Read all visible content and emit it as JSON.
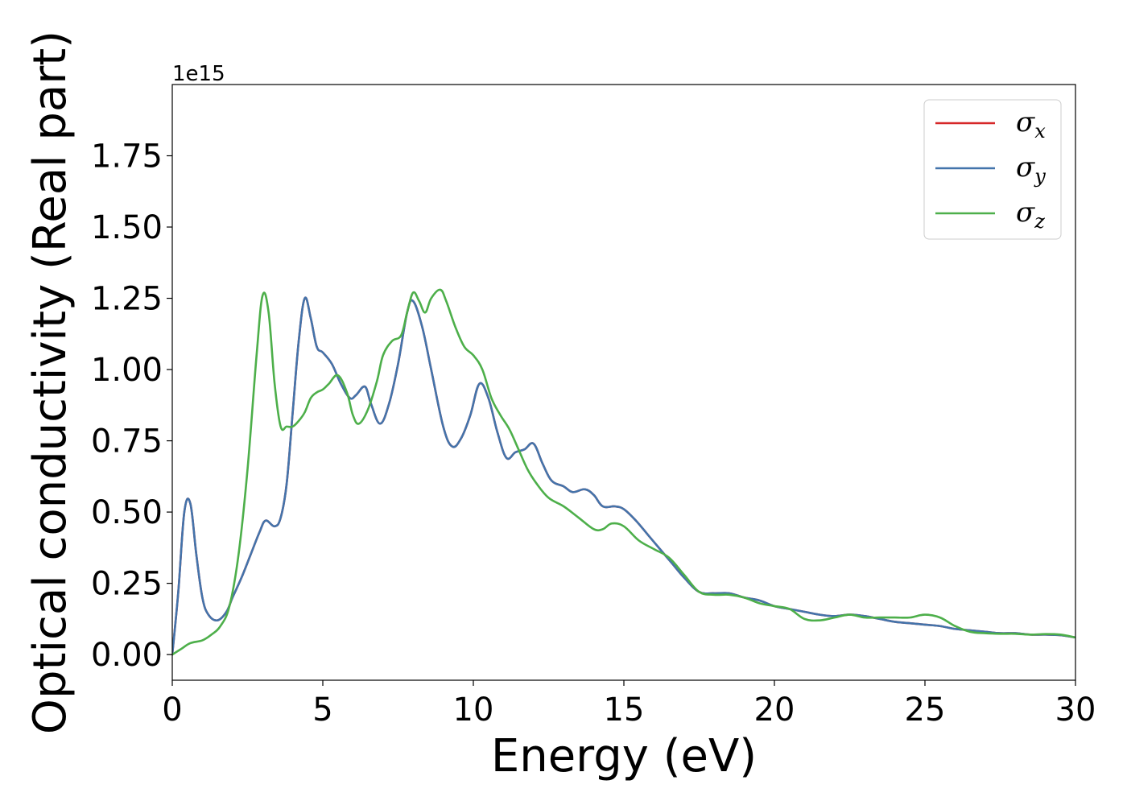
{
  "chart_data": {
    "type": "line",
    "title": "",
    "xlabel": "Energy (eV)",
    "ylabel": "Optical conductivity (Real part)",
    "y_offset_label": "1e15",
    "xlim": [
      0,
      30
    ],
    "ylim": [
      -0.09,
      2.0
    ],
    "xticks": [
      0,
      5,
      10,
      15,
      20,
      25,
      30
    ],
    "xtick_labels": [
      "0",
      "5",
      "10",
      "15",
      "20",
      "25",
      "30"
    ],
    "yticks": [
      0.0,
      0.25,
      0.5,
      0.75,
      1.0,
      1.25,
      1.5,
      1.75
    ],
    "ytick_labels": [
      "0.00",
      "0.25",
      "0.50",
      "0.75",
      "1.00",
      "1.25",
      "1.50",
      "1.75"
    ],
    "grid": false,
    "legend_position": "top-right",
    "series": [
      {
        "name": "σx",
        "legend_base": "σ",
        "legend_sub": "x",
        "color": "#d62728",
        "x": [
          0,
          0.2,
          0.4,
          0.6,
          0.8,
          1.0,
          1.2,
          1.5,
          1.8,
          2.0,
          2.3,
          2.6,
          2.9,
          3.1,
          3.4,
          3.6,
          3.8,
          4.0,
          4.2,
          4.4,
          4.6,
          4.8,
          5.0,
          5.3,
          5.6,
          5.9,
          6.1,
          6.4,
          6.6,
          6.9,
          7.2,
          7.5,
          7.8,
          8.0,
          8.3,
          8.6,
          9.0,
          9.3,
          9.6,
          9.9,
          10.2,
          10.5,
          10.8,
          11.1,
          11.4,
          11.7,
          12.0,
          12.3,
          12.6,
          13.0,
          13.3,
          13.7,
          14.0,
          14.3,
          14.7,
          15.0,
          15.4,
          15.8,
          16.2,
          16.6,
          17.0,
          17.5,
          18.0,
          18.5,
          19.0,
          19.5,
          20.0,
          20.5,
          21.0,
          21.5,
          22.0,
          22.5,
          23.0,
          23.5,
          24.0,
          24.5,
          25.0,
          25.5,
          26.0,
          26.5,
          27.0,
          27.5,
          28.0,
          28.5,
          29.0,
          29.5,
          30.0
        ],
        "values": [
          0.0,
          0.22,
          0.5,
          0.53,
          0.35,
          0.2,
          0.14,
          0.12,
          0.15,
          0.2,
          0.27,
          0.35,
          0.43,
          0.47,
          0.45,
          0.48,
          0.6,
          0.85,
          1.1,
          1.25,
          1.18,
          1.08,
          1.06,
          1.02,
          0.95,
          0.9,
          0.91,
          0.94,
          0.88,
          0.81,
          0.88,
          1.02,
          1.2,
          1.24,
          1.15,
          1.0,
          0.8,
          0.73,
          0.76,
          0.84,
          0.95,
          0.9,
          0.78,
          0.69,
          0.71,
          0.72,
          0.74,
          0.67,
          0.61,
          0.59,
          0.57,
          0.58,
          0.56,
          0.52,
          0.52,
          0.51,
          0.47,
          0.42,
          0.37,
          0.32,
          0.27,
          0.22,
          0.215,
          0.215,
          0.2,
          0.19,
          0.17,
          0.16,
          0.15,
          0.14,
          0.135,
          0.14,
          0.135,
          0.125,
          0.115,
          0.11,
          0.105,
          0.1,
          0.09,
          0.085,
          0.08,
          0.075,
          0.075,
          0.07,
          0.07,
          0.068,
          0.06
        ]
      },
      {
        "name": "σy",
        "legend_base": "σ",
        "legend_sub": "y",
        "color": "#4374ab",
        "x": [
          0,
          0.2,
          0.4,
          0.6,
          0.8,
          1.0,
          1.2,
          1.5,
          1.8,
          2.0,
          2.3,
          2.6,
          2.9,
          3.1,
          3.4,
          3.6,
          3.8,
          4.0,
          4.2,
          4.4,
          4.6,
          4.8,
          5.0,
          5.3,
          5.6,
          5.9,
          6.1,
          6.4,
          6.6,
          6.9,
          7.2,
          7.5,
          7.8,
          8.0,
          8.3,
          8.6,
          9.0,
          9.3,
          9.6,
          9.9,
          10.2,
          10.5,
          10.8,
          11.1,
          11.4,
          11.7,
          12.0,
          12.3,
          12.6,
          13.0,
          13.3,
          13.7,
          14.0,
          14.3,
          14.7,
          15.0,
          15.4,
          15.8,
          16.2,
          16.6,
          17.0,
          17.5,
          18.0,
          18.5,
          19.0,
          19.5,
          20.0,
          20.5,
          21.0,
          21.5,
          22.0,
          22.5,
          23.0,
          23.5,
          24.0,
          24.5,
          25.0,
          25.5,
          26.0,
          26.5,
          27.0,
          27.5,
          28.0,
          28.5,
          29.0,
          29.5,
          30.0
        ],
        "values": [
          0.0,
          0.22,
          0.5,
          0.53,
          0.35,
          0.2,
          0.14,
          0.12,
          0.15,
          0.2,
          0.27,
          0.35,
          0.43,
          0.47,
          0.45,
          0.48,
          0.6,
          0.85,
          1.1,
          1.25,
          1.18,
          1.08,
          1.06,
          1.02,
          0.95,
          0.9,
          0.91,
          0.94,
          0.88,
          0.81,
          0.88,
          1.02,
          1.2,
          1.24,
          1.15,
          1.0,
          0.8,
          0.73,
          0.76,
          0.84,
          0.95,
          0.9,
          0.78,
          0.69,
          0.71,
          0.72,
          0.74,
          0.67,
          0.61,
          0.59,
          0.57,
          0.58,
          0.56,
          0.52,
          0.52,
          0.51,
          0.47,
          0.42,
          0.37,
          0.32,
          0.27,
          0.22,
          0.215,
          0.215,
          0.2,
          0.19,
          0.17,
          0.16,
          0.15,
          0.14,
          0.135,
          0.14,
          0.135,
          0.125,
          0.115,
          0.11,
          0.105,
          0.1,
          0.09,
          0.085,
          0.08,
          0.075,
          0.075,
          0.07,
          0.07,
          0.068,
          0.06
        ]
      },
      {
        "name": "σz",
        "legend_base": "σ",
        "legend_sub": "z",
        "color": "#4daf4a",
        "x": [
          0,
          0.3,
          0.6,
          1.0,
          1.3,
          1.6,
          1.9,
          2.2,
          2.5,
          2.8,
          3.0,
          3.2,
          3.4,
          3.6,
          3.8,
          4.0,
          4.2,
          4.4,
          4.6,
          4.8,
          5.0,
          5.2,
          5.5,
          5.8,
          6.0,
          6.2,
          6.5,
          6.8,
          7.0,
          7.3,
          7.6,
          7.8,
          8.0,
          8.2,
          8.4,
          8.6,
          8.9,
          9.1,
          9.4,
          9.7,
          10.0,
          10.3,
          10.6,
          10.9,
          11.2,
          11.5,
          11.8,
          12.1,
          12.5,
          13.0,
          13.5,
          14.0,
          14.3,
          14.6,
          15.0,
          15.5,
          16.0,
          16.5,
          17.0,
          17.5,
          18.0,
          18.5,
          19.0,
          19.5,
          20.0,
          20.5,
          21.0,
          21.5,
          22.0,
          22.5,
          23.0,
          23.5,
          24.0,
          24.5,
          25.0,
          25.5,
          26.0,
          26.5,
          27.0,
          27.5,
          28.0,
          28.5,
          29.0,
          29.5,
          30.0
        ],
        "values": [
          0.0,
          0.02,
          0.04,
          0.05,
          0.07,
          0.1,
          0.17,
          0.35,
          0.65,
          1.05,
          1.26,
          1.2,
          0.95,
          0.8,
          0.8,
          0.8,
          0.82,
          0.85,
          0.9,
          0.92,
          0.93,
          0.95,
          0.98,
          0.92,
          0.84,
          0.81,
          0.86,
          0.96,
          1.05,
          1.1,
          1.12,
          1.2,
          1.27,
          1.24,
          1.2,
          1.25,
          1.28,
          1.24,
          1.15,
          1.08,
          1.05,
          1.0,
          0.9,
          0.84,
          0.79,
          0.72,
          0.65,
          0.6,
          0.55,
          0.52,
          0.48,
          0.44,
          0.44,
          0.46,
          0.45,
          0.4,
          0.37,
          0.34,
          0.28,
          0.22,
          0.21,
          0.21,
          0.2,
          0.18,
          0.17,
          0.16,
          0.125,
          0.12,
          0.13,
          0.14,
          0.13,
          0.13,
          0.13,
          0.13,
          0.14,
          0.13,
          0.1,
          0.08,
          0.075,
          0.073,
          0.073,
          0.07,
          0.072,
          0.07,
          0.06
        ]
      }
    ]
  }
}
